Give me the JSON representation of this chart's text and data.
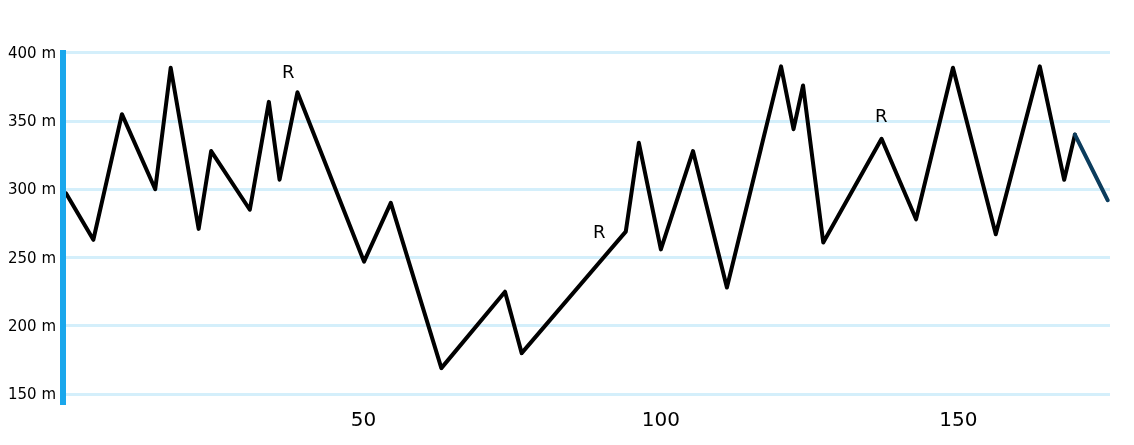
{
  "chart_data": {
    "type": "line",
    "series": [
      {
        "color": "#000000",
        "x": [
          0,
          4.6,
          9.4,
          15,
          17.6,
          22.3,
          24.4,
          30.9,
          34.1,
          35.9,
          38.9,
          50.1,
          54.6,
          63.1,
          73.8,
          76.6,
          94.1,
          96.3,
          100,
          105.4,
          111.1,
          120.2,
          122.3,
          123.9,
          127.3,
          137.1,
          142.9,
          149.1,
          156.3,
          163.7,
          167.8,
          169.6
        ],
        "values": [
          297,
          263,
          355,
          300,
          389,
          271,
          328,
          285,
          364,
          307,
          371,
          247,
          290,
          169,
          225,
          180,
          269,
          334,
          256,
          328,
          228,
          390,
          344,
          376,
          261,
          337,
          278,
          389,
          267,
          390,
          307,
          340
        ]
      },
      {
        "color": "#0b3c5d",
        "x": [
          169.6,
          175.1
        ],
        "values": [
          340,
          292
        ]
      }
    ],
    "xlim": [
      0,
      175.5
    ],
    "xticks": [
      50,
      100,
      150
    ],
    "ylim": [
      142,
      402
    ],
    "yticks": [
      {
        "value": 150,
        "label": "150 m"
      },
      {
        "value": 200,
        "label": "200 m"
      },
      {
        "value": 250,
        "label": "250 m"
      },
      {
        "value": 300,
        "label": "300 m"
      },
      {
        "value": 350,
        "label": "350 m"
      },
      {
        "value": 400,
        "label": "400 m"
      }
    ],
    "grid": "y",
    "marker": "none",
    "line_style": "solid",
    "annotations": [
      "R",
      "R",
      "R"
    ]
  }
}
